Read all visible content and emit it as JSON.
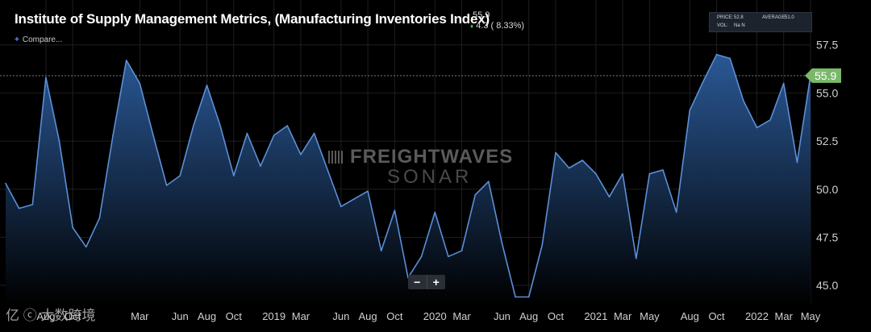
{
  "header": {
    "title": "Institute of Supply Management Metrics, (Manufacturing Inventories Index)",
    "last_value": "55.9",
    "change": "4.3 ( 8.33%)",
    "compare_label": "Compare..."
  },
  "info_box": {
    "price_label": "PRICE:",
    "price_value": "52.8",
    "average_label": "AVERAGE:",
    "average_value": "51.0",
    "vol_label": "VOL:",
    "vol_value": "Na N"
  },
  "watermark": {
    "brand_top": "FREIGHTWAVES",
    "brand_bottom": "SONAR",
    "corner": "亿 ⓒ 大数跨境"
  },
  "zoom": {
    "minus": "−",
    "plus": "+"
  },
  "colors": {
    "line": "#5b8fd8",
    "fill_top": "#2c5c9c",
    "fill_bottom": "#000000",
    "tag": "#7ab86a",
    "grid": "#1e1e1e"
  },
  "chart_data": {
    "type": "area",
    "title": "Institute of Supply Management Metrics, (Manufacturing Inventories Index)",
    "xlabel": "",
    "ylabel": "",
    "ylim": [
      44.0,
      59.5
    ],
    "y_ticks": [
      45.0,
      47.5,
      50.0,
      52.5,
      55.0,
      57.5
    ],
    "y_tick_labels": [
      "45.0",
      "47.5",
      "50.0",
      "52.5",
      "55.0",
      "57.5"
    ],
    "x_tick_labels": [
      "Aug",
      "Oct",
      "Mar",
      "Jun",
      "Aug",
      "Oct",
      "2019",
      "Mar",
      "Jun",
      "Aug",
      "Oct",
      "2020",
      "Mar",
      "Jun",
      "Aug",
      "Oct",
      "2021",
      "Mar",
      "May",
      "Aug",
      "Oct",
      "2022",
      "Mar",
      "May"
    ],
    "x_tick_months": [
      "2017-08",
      "2017-10",
      "2018-03",
      "2018-06",
      "2018-08",
      "2018-10",
      "2019-01",
      "2019-03",
      "2019-06",
      "2019-08",
      "2019-10",
      "2020-01",
      "2020-03",
      "2020-06",
      "2020-08",
      "2020-10",
      "2021-01",
      "2021-03",
      "2021-05",
      "2021-08",
      "2021-10",
      "2022-01",
      "2022-03",
      "2022-05"
    ],
    "last_value_tag": "55.9",
    "reference_line": 55.9,
    "grid": true,
    "series": [
      {
        "x": [
          "2017-05",
          "2017-06",
          "2017-07",
          "2017-08",
          "2017-09",
          "2017-10",
          "2017-11",
          "2017-12",
          "2018-01",
          "2018-02",
          "2018-03",
          "2018-04",
          "2018-05",
          "2018-06",
          "2018-07",
          "2018-08",
          "2018-09",
          "2018-10",
          "2018-11",
          "2018-12",
          "2019-01",
          "2019-02",
          "2019-03",
          "2019-04",
          "2019-05",
          "2019-06",
          "2019-07",
          "2019-08",
          "2019-09",
          "2019-10",
          "2019-11",
          "2019-12",
          "2020-01",
          "2020-02",
          "2020-03",
          "2020-04",
          "2020-05",
          "2020-06",
          "2020-07",
          "2020-08",
          "2020-09",
          "2020-10",
          "2020-11",
          "2020-12",
          "2021-01",
          "2021-02",
          "2021-03",
          "2021-04",
          "2021-05",
          "2021-06",
          "2021-07",
          "2021-08",
          "2021-09",
          "2021-10",
          "2021-11",
          "2021-12",
          "2022-01",
          "2022-02",
          "2022-03",
          "2022-04",
          "2022-05"
        ],
        "values": [
          50.3,
          49.0,
          49.2,
          55.8,
          52.5,
          48.0,
          47.0,
          48.5,
          52.8,
          56.7,
          55.5,
          52.8,
          50.2,
          50.7,
          53.3,
          55.4,
          53.3,
          50.7,
          52.9,
          51.2,
          52.8,
          53.3,
          51.8,
          52.9,
          51.0,
          49.1,
          49.5,
          49.9,
          46.8,
          48.9,
          45.4,
          46.5,
          48.8,
          46.5,
          46.8,
          49.7,
          50.4,
          47.2,
          44.4,
          44.4,
          47.1,
          51.9,
          51.1,
          51.5,
          50.8,
          49.6,
          50.8,
          46.4,
          50.8,
          51.0,
          48.8,
          54.1,
          55.6,
          57.0,
          56.8,
          54.6,
          53.2,
          53.6,
          55.5,
          51.4,
          55.9
        ]
      }
    ]
  }
}
